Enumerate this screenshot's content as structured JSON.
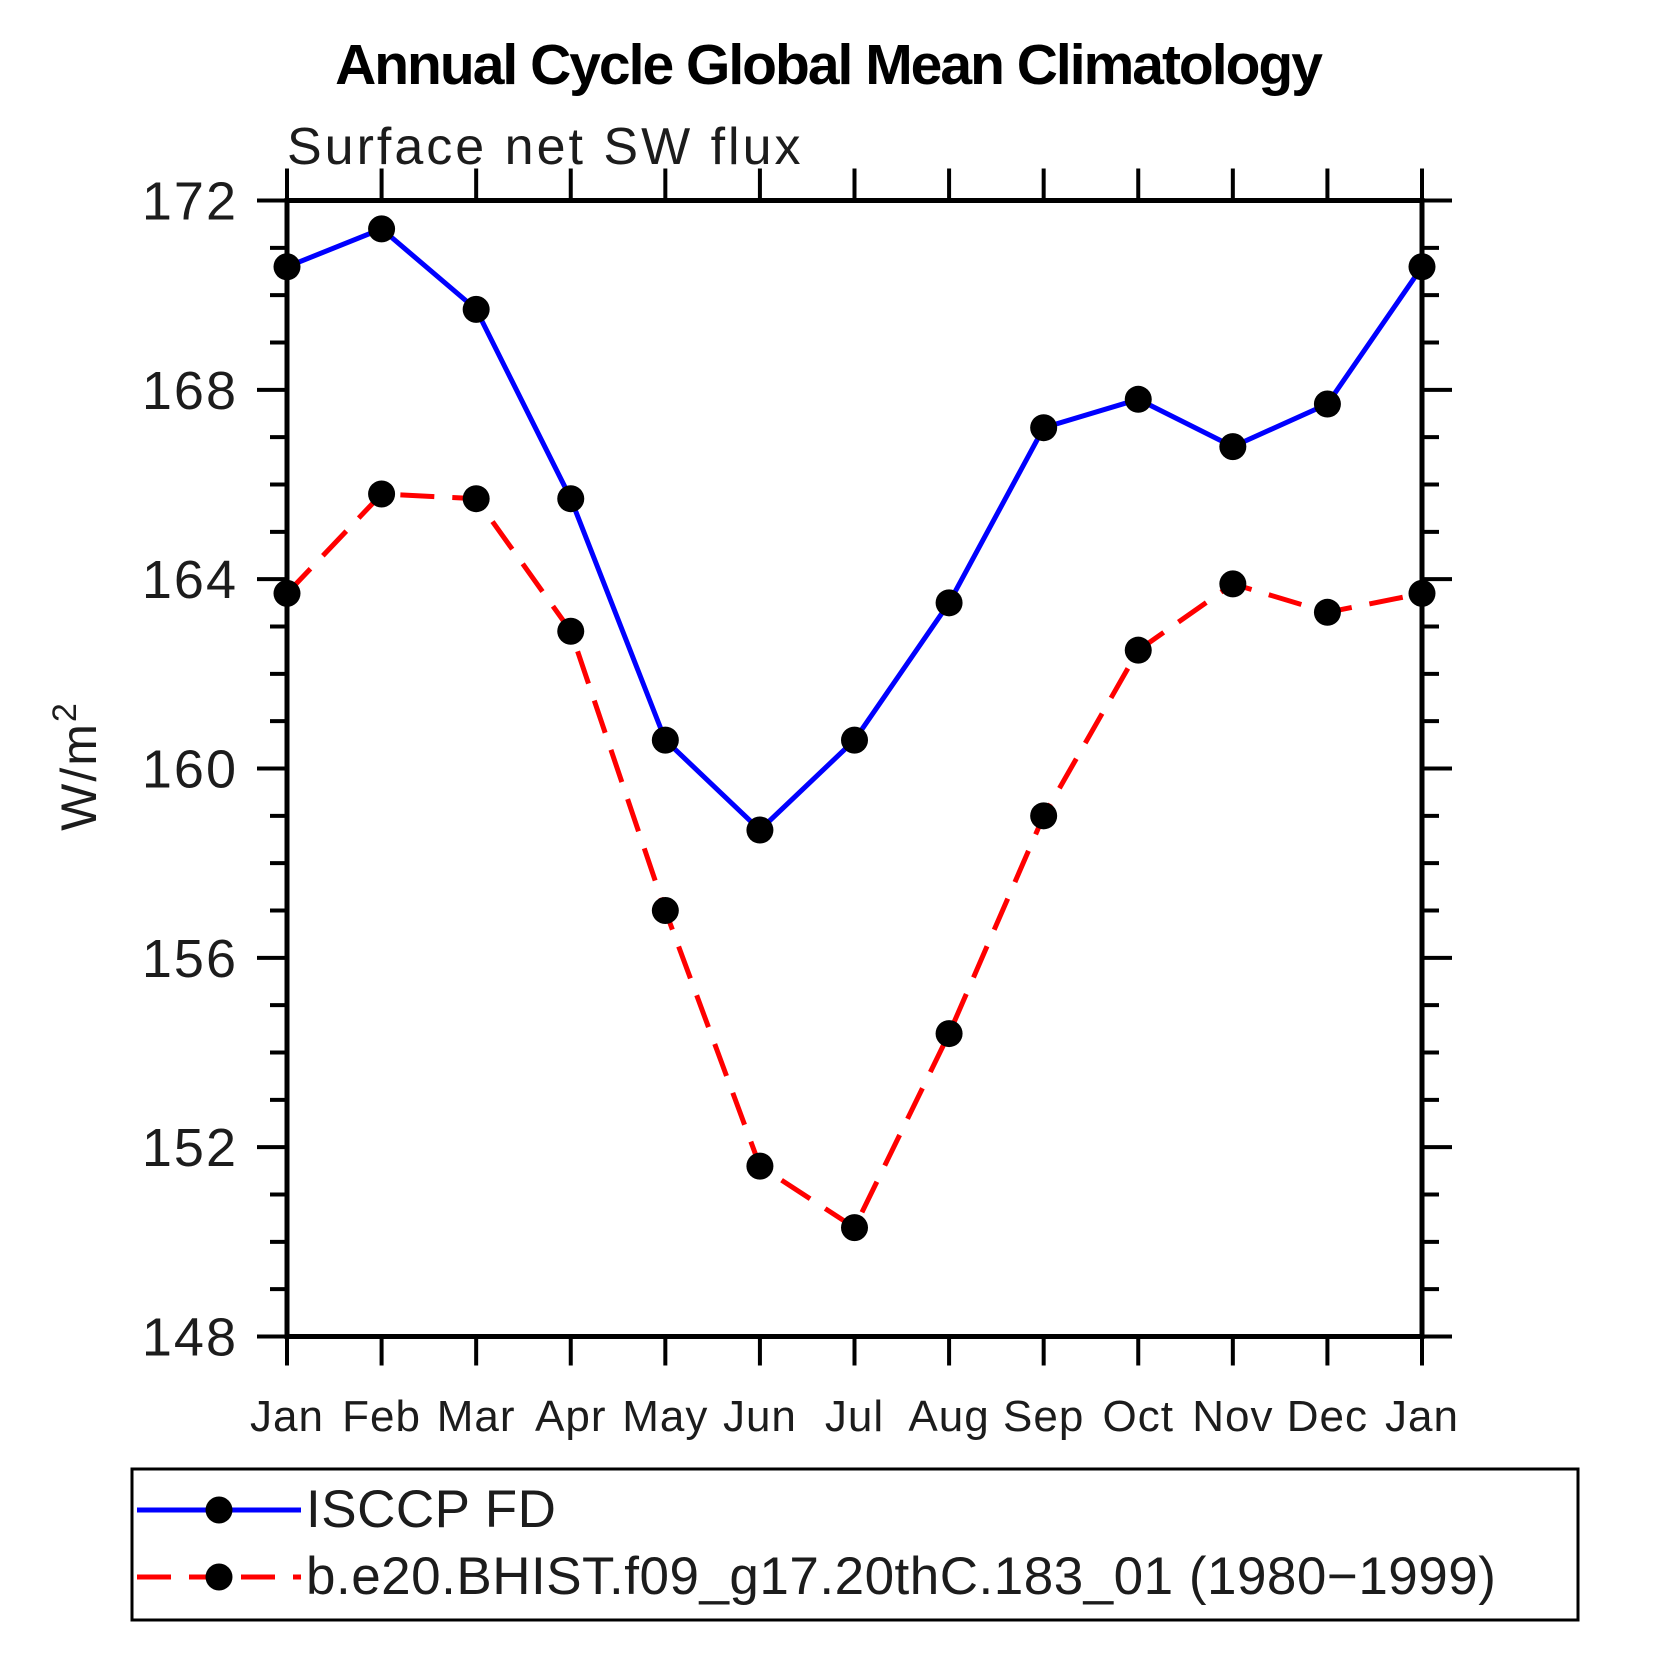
{
  "chart_data": {
    "type": "line",
    "title": "Annual Cycle Global Mean Climatology",
    "subtitle": "Surface net SW flux",
    "ylabel": "W/m^2",
    "ylabel_base": "W/m",
    "ylabel_exponent": "2",
    "xlabel": "",
    "ylim": [
      148,
      172
    ],
    "y_major_ticks": [
      172,
      168,
      164,
      160,
      156,
      152,
      148
    ],
    "y_minor_step": 1,
    "grid": false,
    "categories": [
      "Jan",
      "Feb",
      "Mar",
      "Apr",
      "May",
      "Jun",
      "Jul",
      "Aug",
      "Sep",
      "Oct",
      "Nov",
      "Dec",
      "Jan"
    ],
    "series": [
      {
        "name": "ISCCP FD",
        "color": "#0000ff",
        "line_style": "solid",
        "marker": "filled-circle",
        "marker_color": "#000000",
        "values": [
          170.6,
          171.4,
          169.7,
          165.7,
          160.6,
          158.7,
          160.6,
          163.5,
          167.2,
          167.8,
          166.8,
          167.7,
          170.6
        ]
      },
      {
        "name": "b.e20.BHIST.f09_g17.20thC.183_01 (1980−1999)",
        "color": "#ff0000",
        "line_style": "dashed",
        "marker": "filled-circle",
        "marker_color": "#000000",
        "values": [
          163.7,
          165.8,
          165.7,
          162.9,
          157.0,
          151.6,
          150.3,
          154.4,
          159.0,
          162.5,
          163.9,
          163.3,
          163.7
        ]
      }
    ],
    "legend_position": "bottom-left box"
  }
}
